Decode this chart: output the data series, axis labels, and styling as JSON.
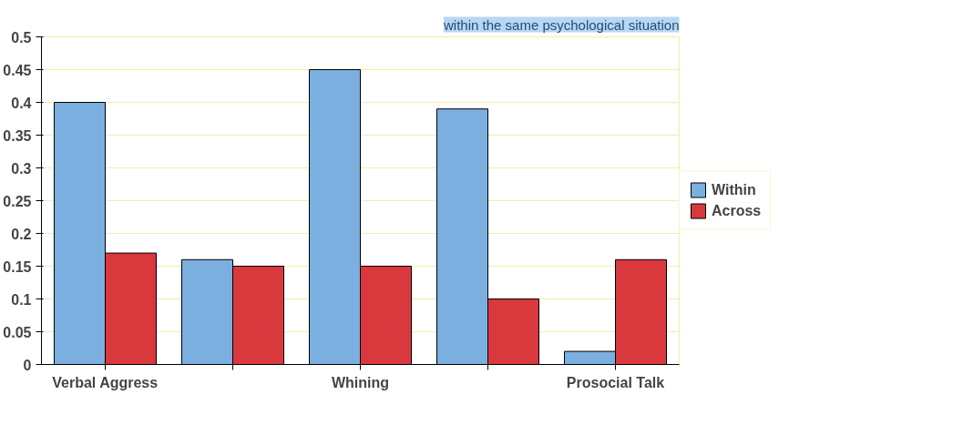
{
  "chart_data": {
    "type": "bar",
    "categories": [
      "Verbal Aggress",
      null,
      "Whining",
      null,
      "Prosocial Talk"
    ],
    "series": [
      {
        "name": "Within",
        "color": "#7aafe0",
        "values": [
          0.4,
          0.16,
          0.45,
          0.39,
          0.02
        ]
      },
      {
        "name": "Across",
        "color": "#d9383d",
        "values": [
          0.17,
          0.15,
          0.15,
          0.1,
          0.16
        ]
      }
    ],
    "ylim": [
      0,
      0.5
    ],
    "yticks": [
      0,
      0.05,
      0.1,
      0.15,
      0.2,
      0.25,
      0.3,
      0.35,
      0.4,
      0.45,
      0.5
    ],
    "grid": "y",
    "legend": "right",
    "annotations": [
      "within the same psychological situation"
    ]
  }
}
